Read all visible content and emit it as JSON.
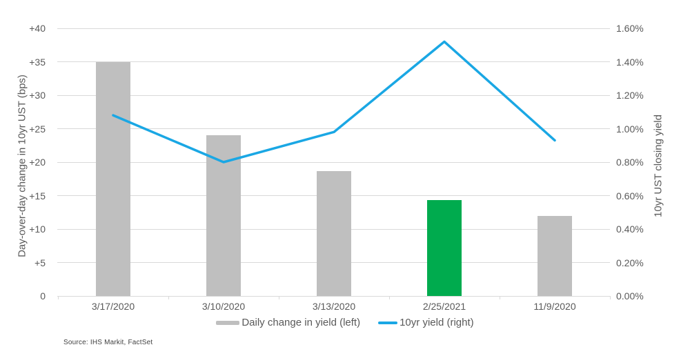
{
  "chart": {
    "left_axis_title": "Day-over-day change in 10yr UST (bps)",
    "right_axis_title": "10yr UST closing yield",
    "source": "Source: IHS Markit, FactSet"
  },
  "colors": {
    "bar": "#BFBFBF",
    "bar_highlight": "#00AB4E",
    "line": "#1AA7E4",
    "gridline": "#D9D9D9",
    "axis_text": "#595959",
    "source_text": "#404040"
  },
  "chart_data": {
    "type": "bar+line combo, dual axis",
    "categories": [
      "3/17/2020",
      "3/10/2020",
      "3/13/2020",
      "2/25/2021",
      "11/9/2020"
    ],
    "series": [
      {
        "name": "Daily change in yield (left)",
        "type": "bar",
        "axis": "left",
        "values": [
          34.9,
          24.0,
          18.7,
          14.3,
          12.0
        ],
        "bar_colors": [
          "#BFBFBF",
          "#BFBFBF",
          "#BFBFBF",
          "#00AB4E",
          "#BFBFBF"
        ]
      },
      {
        "name": "10yr yield (right)",
        "type": "line",
        "axis": "right",
        "values": [
          1.08,
          0.8,
          0.98,
          1.52,
          0.93
        ],
        "color": "#1AA7E4"
      }
    ],
    "left_axis": {
      "label": "Day-over-day change in 10yr UST (bps)",
      "min": 0,
      "max": 40,
      "step": 5,
      "ticks": [
        "0",
        "+5",
        "+10",
        "+15",
        "+20",
        "+25",
        "+30",
        "+35",
        "+40"
      ]
    },
    "right_axis": {
      "label": "10yr UST closing yield",
      "min": 0,
      "max": 1.6,
      "step": 0.2,
      "ticks": [
        "0.00%",
        "0.20%",
        "0.40%",
        "0.60%",
        "0.80%",
        "1.00%",
        "1.20%",
        "1.40%",
        "1.60%"
      ]
    },
    "grid": "horizontal gridlines on, no plot border",
    "legend_position": "bottom-center",
    "legend": [
      {
        "label": "Daily change in yield (left)",
        "marker": "bar-swatch",
        "color": "#BFBFBF"
      },
      {
        "label": "10yr yield (right)",
        "marker": "line",
        "color": "#1AA7E4"
      }
    ],
    "source": "Source: IHS Markit, FactSet",
    "title": ""
  }
}
